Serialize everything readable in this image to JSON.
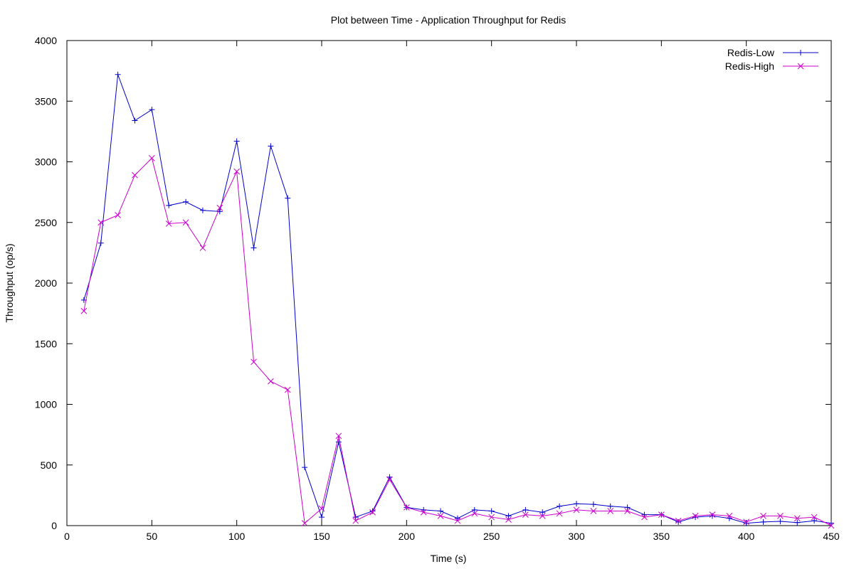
{
  "chart_data": {
    "type": "line",
    "title": "Plot between Time - Application Throughput for Redis",
    "xlabel": "Time (s)",
    "ylabel": "Throughput (op/s)",
    "xlim": [
      0,
      450
    ],
    "ylim": [
      0,
      4000
    ],
    "xticks": [
      0,
      50,
      100,
      150,
      200,
      250,
      300,
      350,
      400,
      450
    ],
    "yticks": [
      0,
      500,
      1000,
      1500,
      2000,
      2500,
      3000,
      3500,
      4000
    ],
    "grid": false,
    "legend_position": "top-right",
    "x": [
      10,
      20,
      30,
      40,
      50,
      60,
      70,
      80,
      90,
      100,
      110,
      120,
      130,
      140,
      150,
      160,
      170,
      180,
      190,
      200,
      210,
      220,
      230,
      240,
      250,
      260,
      270,
      280,
      290,
      300,
      310,
      320,
      330,
      340,
      350,
      360,
      370,
      380,
      390,
      400,
      410,
      420,
      430,
      440,
      450
    ],
    "series": [
      {
        "name": "Redis-Low",
        "color": "#0000cc",
        "marker": "plus",
        "values": [
          1860,
          2330,
          3720,
          3340,
          3430,
          2640,
          2670,
          2600,
          2590,
          3170,
          2290,
          3130,
          2700,
          480,
          70,
          690,
          70,
          120,
          400,
          150,
          130,
          120,
          60,
          130,
          120,
          80,
          130,
          110,
          160,
          180,
          175,
          160,
          150,
          90,
          90,
          30,
          70,
          80,
          60,
          20,
          30,
          35,
          25,
          40,
          20
        ]
      },
      {
        "name": "Redis-High",
        "color": "#cc00cc",
        "marker": "x",
        "values": [
          1770,
          2500,
          2560,
          2890,
          3030,
          2490,
          2500,
          2290,
          2620,
          2920,
          1350,
          1190,
          1120,
          20,
          140,
          740,
          40,
          110,
          380,
          150,
          110,
          80,
          40,
          100,
          70,
          50,
          90,
          80,
          100,
          130,
          120,
          120,
          120,
          70,
          90,
          40,
          80,
          90,
          80,
          30,
          80,
          80,
          60,
          70,
          0
        ]
      }
    ]
  }
}
